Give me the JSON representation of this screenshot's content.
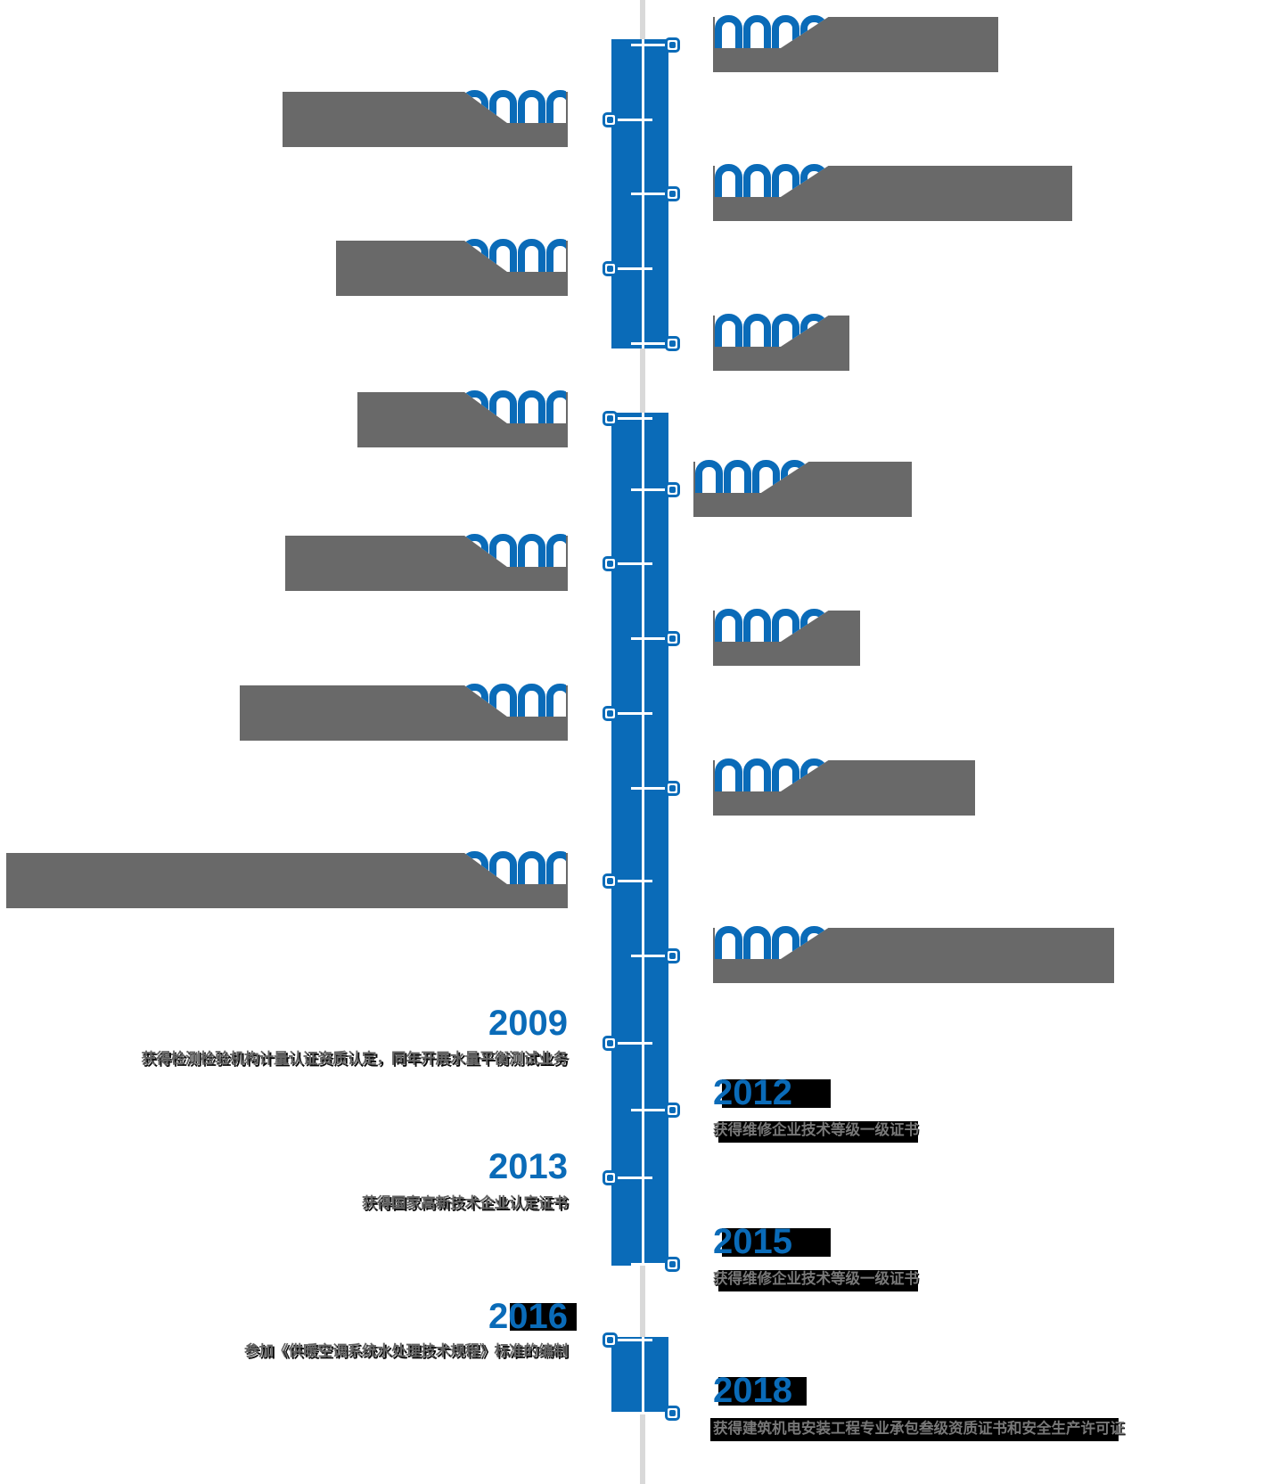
{
  "page": {
    "background": "#ffffff",
    "type": "company-history-timeline"
  },
  "colors": {
    "accent_blue": "#0a6bb8",
    "placeholder_gray": "#696969",
    "description_gray": "#636363",
    "center_line_gray": "#d9d9d9",
    "highlight_black": "#000000",
    "tick_white": "#ffffff"
  },
  "timeline": {
    "orientation": "vertical",
    "marker_icon": "square-bullseye-icon",
    "entries": [
      {
        "side": "right",
        "state": "obscured",
        "year": "",
        "desc": ""
      },
      {
        "side": "left",
        "state": "obscured",
        "year": "",
        "desc": ""
      },
      {
        "side": "right",
        "state": "obscured",
        "year": "",
        "desc": ""
      },
      {
        "side": "left",
        "state": "obscured",
        "year": "",
        "desc": ""
      },
      {
        "side": "right",
        "state": "obscured",
        "year": "",
        "desc": ""
      },
      {
        "side": "left",
        "state": "obscured",
        "year": "",
        "desc": ""
      },
      {
        "side": "right",
        "state": "obscured",
        "year": "",
        "desc": ""
      },
      {
        "side": "left",
        "state": "obscured",
        "year": "",
        "desc": ""
      },
      {
        "side": "right",
        "state": "obscured",
        "year": "",
        "desc": ""
      },
      {
        "side": "left",
        "state": "obscured",
        "year": "",
        "desc": ""
      },
      {
        "side": "right",
        "state": "obscured",
        "year": "",
        "desc": ""
      },
      {
        "side": "left",
        "state": "obscured",
        "year": "",
        "desc": ""
      },
      {
        "side": "right",
        "state": "obscured",
        "year": "",
        "desc": ""
      },
      {
        "side": "left",
        "state": "revealed",
        "year": "2009",
        "desc": "获得检测检验机构计量认证资质认定，同年开展水量平衡测试业务"
      },
      {
        "side": "right",
        "state": "revealed",
        "year": "2012",
        "desc": "获得维修企业技术等级一级证书"
      },
      {
        "side": "left",
        "state": "revealed",
        "year": "2013",
        "desc": "获得国家高新技术企业认定证书"
      },
      {
        "side": "right",
        "state": "revealed",
        "year": "2015",
        "desc": "获得维修企业技术等级一级证书"
      },
      {
        "side": "left",
        "state": "revealed",
        "year": "2016",
        "desc": "参加《供暖空调系统水处理技术规程》标准的编制"
      },
      {
        "side": "right",
        "state": "revealed",
        "year": "2018",
        "desc": "获得建筑机电安装工程专业承包叁级资质证书和安全生产许可证"
      }
    ]
  }
}
